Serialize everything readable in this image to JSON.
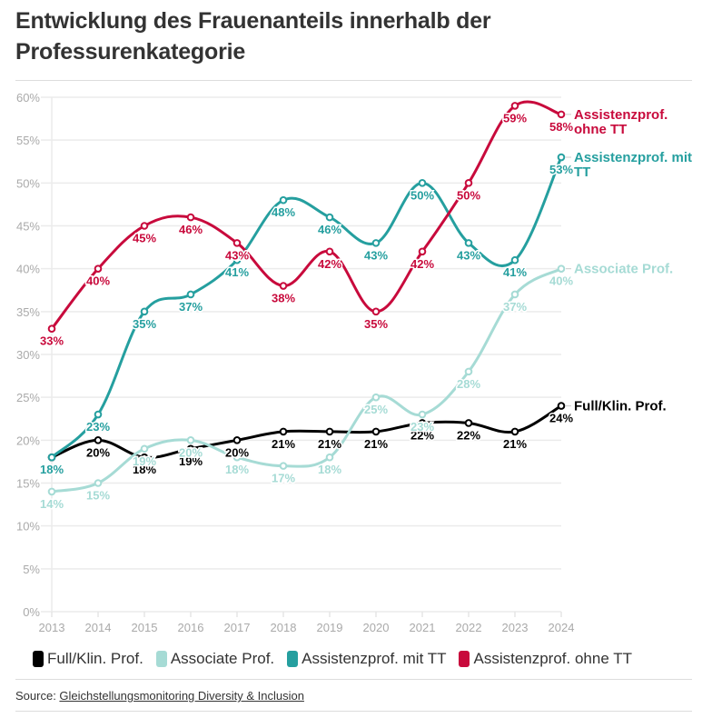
{
  "title": "Entwicklung des Frauenanteils innerhalb der Professurenkategorie",
  "source": {
    "label": "Source: ",
    "link_text": "Gleichstellungsmonitoring Diversity & Inclusion"
  },
  "chart_data": {
    "type": "line",
    "title": "Entwicklung des Frauenanteils innerhalb der Professurenkategorie",
    "xlabel": "",
    "ylabel": "",
    "x": [
      2013,
      2014,
      2015,
      2016,
      2017,
      2018,
      2019,
      2020,
      2021,
      2022,
      2023,
      2024
    ],
    "ylim": [
      0,
      60
    ],
    "yticks": [
      0,
      5,
      10,
      15,
      20,
      25,
      30,
      35,
      40,
      45,
      50,
      55,
      60
    ],
    "ytick_labels": [
      "0%",
      "5%",
      "10%",
      "15%",
      "20%",
      "25%",
      "30%",
      "35%",
      "40%",
      "45%",
      "50%",
      "55%",
      "60%"
    ],
    "grid": true,
    "legend_position": "bottom",
    "series": [
      {
        "name": "Full/Klin. Prof.",
        "end_label": "Full/Klin. Prof.",
        "color": "#000000",
        "values": [
          18,
          20,
          18,
          19,
          20,
          21,
          21,
          21,
          22,
          22,
          21,
          24
        ]
      },
      {
        "name": "Associate Prof.",
        "end_label": "Associate Prof.",
        "color": "#a6dbd5",
        "values": [
          14,
          15,
          19,
          20,
          18,
          17,
          18,
          25,
          23,
          28,
          37,
          40
        ]
      },
      {
        "name": "Assistenzprof. mit TT",
        "end_label": "Assistenzprof. mit TT",
        "color": "#259f9f",
        "values": [
          18,
          23,
          35,
          37,
          41,
          48,
          46,
          43,
          50,
          43,
          41,
          53
        ]
      },
      {
        "name": "Assistenzprof. ohne TT",
        "end_label": "Assistenzprof. ohne TT",
        "color": "#c80a3c",
        "values": [
          33,
          40,
          45,
          46,
          43,
          38,
          42,
          35,
          42,
          50,
          59,
          58
        ]
      }
    ]
  }
}
